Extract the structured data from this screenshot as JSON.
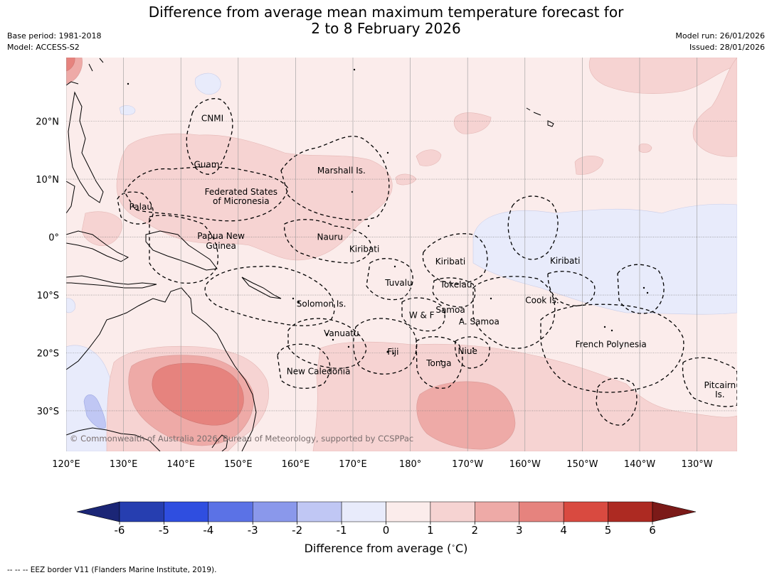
{
  "title_line1": "Difference from average mean maximum temperature forecast for",
  "title_line2": "2 to 8 February 2026",
  "base_period": "Base period: 1981-2018",
  "model": "Model: ACCESS-S2",
  "model_run": "Model run: 26/01/2026",
  "issued": "Issued: 28/01/2026",
  "copyright": "© Commonwealth of Australia 2026, Bureau of Meteorology, supported by CCSPPac",
  "footer_note": "--  --  -- EEZ border V11 (Flanders Marine Institute, 2019).",
  "map": {
    "lat_labels": [
      "20°N",
      "10°N",
      "0°",
      "10°S",
      "20°S",
      "30°S"
    ],
    "lat_values": [
      20,
      10,
      0,
      -10,
      -20,
      -30
    ],
    "lon_labels": [
      "120°E",
      "130°E",
      "140°E",
      "150°E",
      "160°E",
      "170°E",
      "180°",
      "170°W",
      "160°W",
      "150°W",
      "140°W",
      "130°W"
    ],
    "lon_values": [
      120,
      130,
      140,
      150,
      160,
      170,
      180,
      190,
      200,
      210,
      220,
      230
    ],
    "lon_range": [
      120,
      237
    ],
    "lat_range": [
      -37,
      31
    ],
    "regions": [
      {
        "name": "CNMI",
        "lon": 145.5,
        "lat": 20.5
      },
      {
        "name": "Guam",
        "lon": 144.5,
        "lat": 12.5
      },
      {
        "name": "Marshall Is.",
        "lon": 168,
        "lat": 11.5
      },
      {
        "name": "Federated States",
        "lon": 150.5,
        "lat": 7.8
      },
      {
        "name": "of Micronesia",
        "lon": 150.5,
        "lat": 6.2
      },
      {
        "name": "Palau",
        "lon": 133,
        "lat": 5.2
      },
      {
        "name": "Papua New",
        "lon": 147,
        "lat": 0.2
      },
      {
        "name": "Guinea",
        "lon": 147,
        "lat": -1.5
      },
      {
        "name": "Nauru",
        "lon": 166,
        "lat": 0
      },
      {
        "name": "Kiribati",
        "lon": 172,
        "lat": -2.1
      },
      {
        "name": "Kiribati",
        "lon": 187,
        "lat": -4.2
      },
      {
        "name": "Kiribati",
        "lon": 207,
        "lat": -4.1
      },
      {
        "name": "Tuvalu",
        "lon": 178,
        "lat": -7.9
      },
      {
        "name": "Tokelau",
        "lon": 188,
        "lat": -8.2
      },
      {
        "name": "Cook Is.",
        "lon": 203,
        "lat": -10.9
      },
      {
        "name": "Solomon Is.",
        "lon": 164.5,
        "lat": -11.5
      },
      {
        "name": "Samoa",
        "lon": 187,
        "lat": -12.6
      },
      {
        "name": "W & F",
        "lon": 182,
        "lat": -13.5
      },
      {
        "name": "A. Samoa",
        "lon": 192,
        "lat": -14.6
      },
      {
        "name": "Vanuatu",
        "lon": 168,
        "lat": -16.6
      },
      {
        "name": "Fiji",
        "lon": 177,
        "lat": -19.8
      },
      {
        "name": "Niue",
        "lon": 190,
        "lat": -19.7
      },
      {
        "name": "French Polynesia",
        "lon": 215,
        "lat": -18.5
      },
      {
        "name": "Tonga",
        "lon": 185,
        "lat": -21.8
      },
      {
        "name": "New Caledonia",
        "lon": 164,
        "lat": -23.2
      },
      {
        "name": "Pitcairn",
        "lon": 234,
        "lat": -25.6
      },
      {
        "name": "Is.",
        "lon": 234,
        "lat": -27.2
      }
    ]
  },
  "colorbar": {
    "label": "Difference from average (°C)",
    "label_text": "Difference from average (",
    "label_unit": "C)",
    "ticks": [
      "-6",
      "-5",
      "-4",
      "-3",
      "-2",
      "-1",
      "0",
      "1",
      "2",
      "3",
      "4",
      "5",
      "6"
    ],
    "colors": [
      "#263eb0",
      "#2f4ee0",
      "#5b72e6",
      "#8a98eb",
      "#c0c7f4",
      "#e8ebfb",
      "#fbeceb",
      "#f6d3d2",
      "#eeaaa7",
      "#e6837e",
      "#d94a40",
      "#ad2a22"
    ],
    "under_color": "#1b2676",
    "over_color": "#7b1a18"
  }
}
